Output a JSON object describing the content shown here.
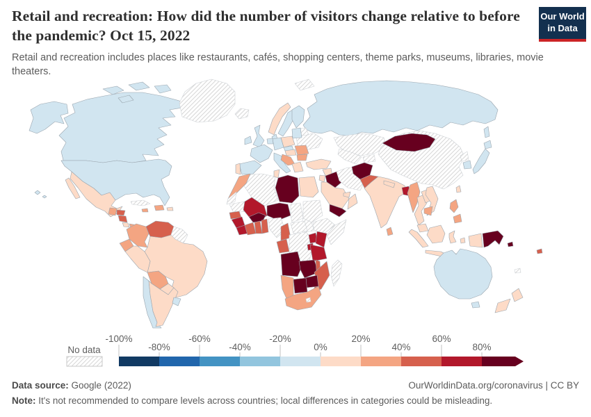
{
  "header": {
    "title": "Retail and recreation: How did the number of visitors change relative to before the pandemic? Oct 15, 2022",
    "subtitle": "Retail and recreation includes places like restaurants, cafés, shopping centers, theme parks, museums, libraries, movie theaters.",
    "logo": {
      "line1": "Our World",
      "line2": "in Data",
      "bg": "#13304f",
      "accent": "#cc2426"
    }
  },
  "legend": {
    "no_data_label": "No data",
    "ticks": [
      "-100%",
      "-80%",
      "-60%",
      "-40%",
      "-20%",
      "0%",
      "20%",
      "40%",
      "60%",
      "80%"
    ]
  },
  "footer": {
    "datasource_label": "Data source:",
    "datasource_value": " Google (2022)",
    "link": "OurWorldinData.org/coronavirus",
    "separator": " | ",
    "license": "CC BY",
    "note_label": "Note:",
    "note_value": " It's not recommended to compare levels across countries; local differences in categories could be misleading."
  },
  "chart_data": {
    "type": "choropleth",
    "title": "Retail and recreation: How did the number of visitors change relative to before the pandemic?",
    "date": "Oct 15, 2022",
    "unit": "%",
    "legend_position": "bottom",
    "color_scale": {
      "no_data": {
        "label": "No data",
        "pattern": "diagonal-hatch"
      },
      "bins": [
        {
          "label": "-100% to -80%",
          "color": "#113a63"
        },
        {
          "label": "-80% to -60%",
          "color": "#2166ac"
        },
        {
          "label": "-60% to -40%",
          "color": "#4393c3"
        },
        {
          "label": "-40% to -20%",
          "color": "#92c5de"
        },
        {
          "label": "-20% to 0%",
          "color": "#d1e5f0"
        },
        {
          "label": "0% to 20%",
          "color": "#fddbc7"
        },
        {
          "label": "20% to 40%",
          "color": "#f4a582"
        },
        {
          "label": "40% to 60%",
          "color": "#d6604d"
        },
        {
          "label": "60% to 80%",
          "color": "#b2182b"
        },
        {
          "label": "80%+",
          "color": "#67001f"
        }
      ]
    },
    "countries": [
      {
        "name": "Canada",
        "range": "-20% to 0%"
      },
      {
        "name": "United States",
        "range": "-20% to 0%"
      },
      {
        "name": "Greenland",
        "range": "No data"
      },
      {
        "name": "Iceland",
        "range": "No data"
      },
      {
        "name": "Mexico",
        "range": "0% to 20%"
      },
      {
        "name": "Cuba",
        "range": "No data"
      },
      {
        "name": "Haiti & Dominican Republic",
        "range": "20% to 40%"
      },
      {
        "name": "Jamaica",
        "range": "20% to 40%"
      },
      {
        "name": "Puerto Rico",
        "range": "0% to 20%"
      },
      {
        "name": "Guatemala",
        "range": "20% to 40%"
      },
      {
        "name": "Honduras",
        "range": "40% to 60%"
      },
      {
        "name": "Nicaragua",
        "range": "40% to 60%"
      },
      {
        "name": "Costa Rica",
        "range": "0% to 20%"
      },
      {
        "name": "Panama",
        "range": "20% to 40%"
      },
      {
        "name": "Brazil",
        "range": "0% to 20%"
      },
      {
        "name": "Colombia",
        "range": "20% to 40%"
      },
      {
        "name": "Venezuela",
        "range": "40% to 60%"
      },
      {
        "name": "Guyana & Suriname",
        "range": "No data"
      },
      {
        "name": "Ecuador",
        "range": "20% to 40%"
      },
      {
        "name": "Peru",
        "range": "0% to 20%"
      },
      {
        "name": "Bolivia",
        "range": "20% to 40%"
      },
      {
        "name": "Paraguay",
        "range": "0% to 20%"
      },
      {
        "name": "Chile",
        "range": "-20% to 0%"
      },
      {
        "name": "Argentina",
        "range": "0% to 20%"
      },
      {
        "name": "Uruguay",
        "range": "-20% to 0%"
      },
      {
        "name": "Russia",
        "range": "-20% to 0%"
      },
      {
        "name": "Svalbard",
        "range": "No data"
      },
      {
        "name": "Ukraine",
        "range": "No data"
      },
      {
        "name": "Belarus",
        "range": "No data"
      },
      {
        "name": "Norway",
        "range": "0% to 20%"
      },
      {
        "name": "Sweden",
        "range": "-20% to 0%"
      },
      {
        "name": "Finland",
        "range": "-20% to 0%"
      },
      {
        "name": "Denmark",
        "range": "-20% to 0%"
      },
      {
        "name": "Ireland",
        "range": "-20% to 0%"
      },
      {
        "name": "United Kingdom",
        "range": "-20% to 0%"
      },
      {
        "name": "Baltic states",
        "range": "-20% to 0%"
      },
      {
        "name": "Poland",
        "range": "0% to 20%"
      },
      {
        "name": "Germany",
        "range": "-20% to 0%"
      },
      {
        "name": "Netherlands & Belgium",
        "range": "-20% to 0%"
      },
      {
        "name": "France",
        "range": "-20% to 0%"
      },
      {
        "name": "Spain",
        "range": "-20% to 0%"
      },
      {
        "name": "Portugal",
        "range": "0% to 20%"
      },
      {
        "name": "Italy",
        "range": "-20% to 0%"
      },
      {
        "name": "Czechia",
        "range": "-20% to 0%"
      },
      {
        "name": "Austria & Hungary",
        "range": "0% to 20%"
      },
      {
        "name": "Croatia & Balkans",
        "range": "20% to 40%"
      },
      {
        "name": "Romania",
        "range": "20% to 40%"
      },
      {
        "name": "Bulgaria",
        "range": "20% to 40%"
      },
      {
        "name": "Greece",
        "range": "0% to 20%"
      },
      {
        "name": "Turkey",
        "range": "0% to 20%"
      },
      {
        "name": "Syria",
        "range": "0% to 20%"
      },
      {
        "name": "Israel & Jordan",
        "range": "0% to 20%"
      },
      {
        "name": "Iraq",
        "range": "80%+"
      },
      {
        "name": "Iran",
        "range": "No data"
      },
      {
        "name": "Saudi Arabia",
        "range": "0% to 20%"
      },
      {
        "name": "Yemen",
        "range": "80%+"
      },
      {
        "name": "Oman",
        "range": "0% to 20%"
      },
      {
        "name": "UAE & Qatar",
        "range": "0% to 20%"
      },
      {
        "name": "Kazakhstan",
        "range": "No data"
      },
      {
        "name": "Uzbekistan & Turkmenistan",
        "range": "No data"
      },
      {
        "name": "Kyrgyzstan & Tajikistan",
        "range": "No data"
      },
      {
        "name": "China",
        "range": "No data"
      },
      {
        "name": "Mongolia",
        "range": "80%+"
      },
      {
        "name": "Afghanistan",
        "range": "80%+"
      },
      {
        "name": "Pakistan",
        "range": "40% to 60%"
      },
      {
        "name": "India",
        "range": "0% to 20%"
      },
      {
        "name": "Nepal",
        "range": "0% to 20%"
      },
      {
        "name": "Sri Lanka",
        "range": "20% to 40%"
      },
      {
        "name": "Bangladesh",
        "range": "60% to 80%"
      },
      {
        "name": "Myanmar",
        "range": "20% to 40%"
      },
      {
        "name": "Thailand",
        "range": "0% to 20%"
      },
      {
        "name": "Laos",
        "range": "0% to 20%"
      },
      {
        "name": "Vietnam",
        "range": "0% to 20%"
      },
      {
        "name": "Cambodia",
        "range": "20% to 40%"
      },
      {
        "name": "Malaysia",
        "range": "0% to 20%"
      },
      {
        "name": "Taiwan",
        "range": "0% to 20%"
      },
      {
        "name": "North Korea",
        "range": "No data"
      },
      {
        "name": "South Korea",
        "range": "-20% to 0%"
      },
      {
        "name": "Japan",
        "range": "-20% to 0%"
      },
      {
        "name": "Philippines",
        "range": "20% to 40%"
      },
      {
        "name": "Indonesia",
        "range": "0% to 20%"
      },
      {
        "name": "Papua New Guinea",
        "range": "80%+"
      },
      {
        "name": "Solomon Islands",
        "range": "80%+"
      },
      {
        "name": "Fiji",
        "range": "40% to 60%"
      },
      {
        "name": "New Caledonia",
        "range": "No data"
      },
      {
        "name": "Australia",
        "range": "-20% to 0%"
      },
      {
        "name": "New Zealand",
        "range": "0% to 20%"
      },
      {
        "name": "Algeria",
        "range": "No data"
      },
      {
        "name": "Morocco",
        "range": "20% to 40%"
      },
      {
        "name": "Western Sahara",
        "range": "No data"
      },
      {
        "name": "Tunisia",
        "range": "0% to 20%"
      },
      {
        "name": "Libya",
        "range": "80%+"
      },
      {
        "name": "Egypt",
        "range": "0% to 20%"
      },
      {
        "name": "Mauritania",
        "range": "No data"
      },
      {
        "name": "Mali",
        "range": "60% to 80%"
      },
      {
        "name": "Niger",
        "range": "80%+"
      },
      {
        "name": "Chad",
        "range": "No data"
      },
      {
        "name": "Sudan",
        "range": "No data"
      },
      {
        "name": "South Sudan",
        "range": "No data"
      },
      {
        "name": "Ethiopia",
        "range": "No data"
      },
      {
        "name": "Somalia",
        "range": "No data"
      },
      {
        "name": "Senegal",
        "range": "40% to 60%"
      },
      {
        "name": "Guinea",
        "range": "60% to 80%"
      },
      {
        "name": "Sierra Leone & Liberia",
        "range": "60% to 80%"
      },
      {
        "name": "Burkina Faso",
        "range": "80%+"
      },
      {
        "name": "Ivory Coast",
        "range": "40% to 60%"
      },
      {
        "name": "Ghana",
        "range": "40% to 60%"
      },
      {
        "name": "Togo & Benin",
        "range": "40% to 60%"
      },
      {
        "name": "Nigeria",
        "range": "No data"
      },
      {
        "name": "Cameroon",
        "range": "40% to 60%"
      },
      {
        "name": "Central African Republic",
        "range": "No data"
      },
      {
        "name": "Gabon & Congo",
        "range": "40% to 60%"
      },
      {
        "name": "DR Congo",
        "range": "No data"
      },
      {
        "name": "Uganda",
        "range": "60% to 80%"
      },
      {
        "name": "Kenya",
        "range": "60% to 80%"
      },
      {
        "name": "Rwanda & Burundi",
        "range": "60% to 80%"
      },
      {
        "name": "Tanzania",
        "range": "60% to 80%"
      },
      {
        "name": "Angola",
        "range": "80%+"
      },
      {
        "name": "Zambia",
        "range": "80%+"
      },
      {
        "name": "Malawi",
        "range": "40% to 60%"
      },
      {
        "name": "Mozambique",
        "range": "40% to 60%"
      },
      {
        "name": "Zimbabwe",
        "range": "80%+"
      },
      {
        "name": "Botswana",
        "range": "80%+"
      },
      {
        "name": "Namibia",
        "range": "20% to 40%"
      },
      {
        "name": "South Africa",
        "range": "20% to 40%"
      },
      {
        "name": "Lesotho",
        "range": "No data"
      },
      {
        "name": "Madagascar",
        "range": "No data"
      }
    ]
  }
}
